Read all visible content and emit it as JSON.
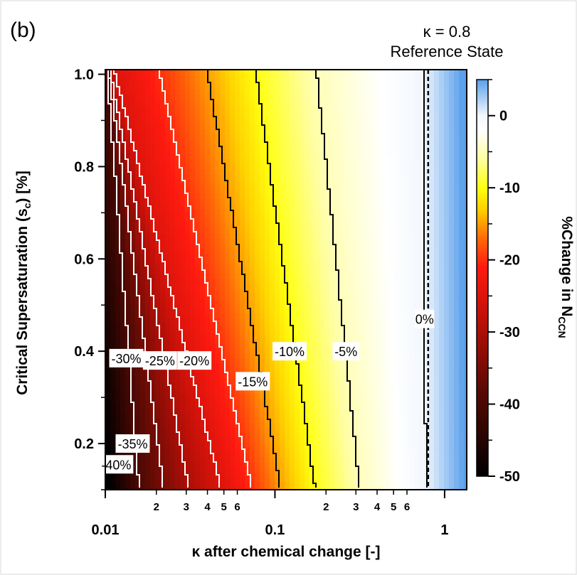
{
  "chart_data": {
    "type": "heatmap",
    "panel_label": "(b)",
    "reference": {
      "kappa_label": "κ = 0.8",
      "state_label": "Reference State",
      "x": 0.8
    },
    "xlabel": "κ after chemical change [-]",
    "ylabel_main": "Critical Supersaturation (s",
    "ylabel_sub": "c",
    "ylabel_tail": ") [%]",
    "x_scale": "log",
    "xlim": [
      0.01,
      1.35
    ],
    "ylim": [
      0.1,
      1.01
    ],
    "x_major_ticks": [
      {
        "value": 0.01,
        "label": "0.01"
      },
      {
        "value": 0.1,
        "label": "0.1"
      },
      {
        "value": 1,
        "label": "1"
      }
    ],
    "x_minor_ticks": [
      {
        "value": 0.02,
        "label": "2"
      },
      {
        "value": 0.03,
        "label": "3"
      },
      {
        "value": 0.04,
        "label": "4"
      },
      {
        "value": 0.05,
        "label": "5"
      },
      {
        "value": 0.06,
        "label": "6"
      },
      {
        "value": 0.2,
        "label": "2"
      },
      {
        "value": 0.3,
        "label": "3"
      },
      {
        "value": 0.4,
        "label": "4"
      },
      {
        "value": 0.5,
        "label": "5"
      },
      {
        "value": 0.6,
        "label": "6"
      }
    ],
    "y_ticks": [
      {
        "value": 0.2,
        "label": "0.2"
      },
      {
        "value": 0.4,
        "label": "0.4"
      },
      {
        "value": 0.6,
        "label": "0.6"
      },
      {
        "value": 0.8,
        "label": "0.8"
      },
      {
        "value": 1.0,
        "label": "1.0"
      }
    ],
    "colorbar": {
      "label_main": "%Change in N",
      "label_sub": "CCN",
      "range": [
        -50,
        5
      ],
      "ticks": [
        {
          "value": 0,
          "label": "0"
        },
        {
          "value": -10,
          "label": "-10"
        },
        {
          "value": -20,
          "label": "-20"
        },
        {
          "value": -30,
          "label": "-30"
        },
        {
          "value": -40,
          "label": "-40"
        },
        {
          "value": -50,
          "label": "-50"
        }
      ],
      "stops": [
        {
          "value": -50,
          "color": "#000000"
        },
        {
          "value": -38,
          "color": "#5a0a04"
        },
        {
          "value": -28,
          "color": "#c01008"
        },
        {
          "value": -21,
          "color": "#ff1a10"
        },
        {
          "value": -17,
          "color": "#ff6a08"
        },
        {
          "value": -13,
          "color": "#ffd000"
        },
        {
          "value": -10,
          "color": "#ffff10"
        },
        {
          "value": -6,
          "color": "#fffea0"
        },
        {
          "value": -2,
          "color": "#ffffff"
        },
        {
          "value": 0,
          "color": "#f2f7fd"
        },
        {
          "value": 5,
          "color": "#5aa0ec"
        }
      ]
    },
    "contours": [
      {
        "level": -40,
        "label": "-40%",
        "color": "white",
        "kappa_at_s_top": 0.0102,
        "kappa_at_s_bottom": 0.0158,
        "label_x": 0.0116,
        "label_y": 0.155
      },
      {
        "level": -35,
        "label": "-35%",
        "color": "white",
        "kappa_at_s_top": 0.0104,
        "kappa_at_s_bottom": 0.022,
        "label_x": 0.0145,
        "label_y": 0.2
      },
      {
        "level": -30,
        "label": "-30%",
        "color": "white",
        "kappa_at_s_top": 0.0106,
        "kappa_at_s_bottom": 0.031,
        "label_x": 0.0133,
        "label_y": 0.385
      },
      {
        "level": -25,
        "label": "-25%",
        "color": "white",
        "kappa_at_s_top": 0.0112,
        "kappa_at_s_bottom": 0.048,
        "label_x": 0.021,
        "label_y": 0.38
      },
      {
        "level": -20,
        "label": "-20%",
        "color": "white",
        "kappa_at_s_top": 0.0205,
        "kappa_at_s_bottom": 0.073,
        "label_x": 0.0335,
        "label_y": 0.38
      },
      {
        "level": -15,
        "label": "-15%",
        "color": "black",
        "kappa_at_s_top": 0.0395,
        "kappa_at_s_bottom": 0.108,
        "label_x": 0.074,
        "label_y": 0.335
      },
      {
        "level": -10,
        "label": "-10%",
        "color": "black",
        "kappa_at_s_top": 0.0765,
        "kappa_at_s_bottom": 0.172,
        "label_x": 0.122,
        "label_y": 0.4
      },
      {
        "level": -5,
        "label": "-5%",
        "color": "black",
        "kappa_at_s_top": 0.175,
        "kappa_at_s_bottom": 0.315,
        "label_x": 0.262,
        "label_y": 0.4
      },
      {
        "level": 0,
        "label": "0%",
        "color": "black",
        "kappa_at_s_top": 0.75,
        "kappa_at_s_bottom": 0.775,
        "label_x": 0.762,
        "label_y": 0.47
      }
    ]
  }
}
